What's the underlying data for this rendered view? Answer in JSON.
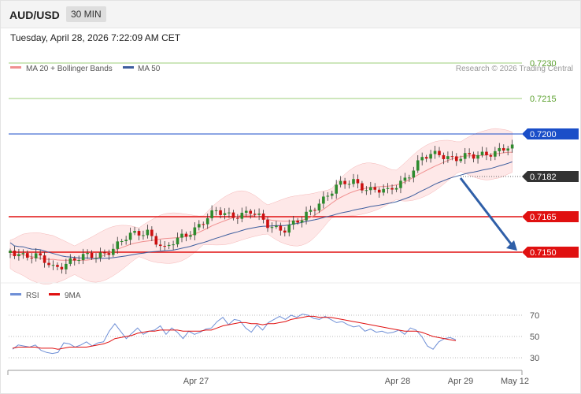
{
  "header": {
    "symbol": "AUD/USD",
    "timeframe": "30 MIN",
    "timestamp": "Tuesday, April 28, 2026 7:22:09 AM CET"
  },
  "legend": {
    "ma20": "MA 20 + Bollinger Bands",
    "ma50": "MA 50",
    "credit": "Research © 2026 Trading Central",
    "rsi": "RSI",
    "rsi_ma": "9MA"
  },
  "colors": {
    "bull": "#2e8b2e",
    "bear": "#cc1010",
    "ma20": "#f09090",
    "band": "#fde0e0",
    "ma50": "#3e5e9e",
    "resistance": "#1a4ec8",
    "support": "#e01010",
    "target_green": "#9dcf7a",
    "arrow": "#2f5fa8",
    "rsi": "#6e8fd6",
    "rsi_ma": "#e01010"
  },
  "chart_data": [
    {
      "type": "candlestick",
      "yrange": [
        0.7125,
        0.724
      ],
      "levels": [
        {
          "value": 0.723,
          "label": "0.7230",
          "kind": "target",
          "color": "#9dcf7a"
        },
        {
          "value": 0.7215,
          "label": "0.7215",
          "kind": "target",
          "color": "#9dcf7a"
        },
        {
          "value": 0.72,
          "label": "0.7200",
          "kind": "resistance",
          "color": "#1a4ec8"
        },
        {
          "value": 0.7182,
          "label": "0.7182",
          "kind": "last",
          "color": "#333333"
        },
        {
          "value": 0.7165,
          "label": "0.7165",
          "kind": "support",
          "color": "#e01010"
        },
        {
          "value": 0.715,
          "label": "0.7150",
          "kind": "support",
          "color": "#e01010"
        }
      ],
      "last_price": 0.7182,
      "forecast": {
        "from": 0.7182,
        "to": 0.715,
        "direction": "down"
      }
    },
    {
      "type": "line",
      "title": "RSI",
      "ylim": [
        25,
        75
      ],
      "yticks": [
        {
          "value": 70,
          "label": "70"
        },
        {
          "value": 50,
          "label": "50"
        },
        {
          "value": 30,
          "label": "30"
        }
      ],
      "series": [
        {
          "name": "RSI",
          "values": [
            38,
            42,
            41,
            40,
            42,
            37,
            35,
            34,
            35,
            44,
            43,
            40,
            42,
            45,
            41,
            44,
            45,
            55,
            62,
            55,
            48,
            53,
            58,
            52,
            55,
            56,
            60,
            52,
            58,
            54,
            48,
            55,
            52,
            54,
            57,
            58,
            64,
            68,
            61,
            66,
            65,
            58,
            54,
            61,
            56,
            63,
            66,
            69,
            66,
            70,
            68,
            71,
            70,
            67,
            66,
            69,
            66,
            63,
            64,
            61,
            59,
            60,
            55,
            57,
            54,
            55,
            53,
            54,
            56,
            52,
            58,
            56,
            50,
            41,
            38,
            45,
            48,
            49,
            47
          ]
        },
        {
          "name": "9MA",
          "values": [
            39,
            40,
            40,
            40,
            40,
            39,
            39,
            39,
            38,
            39,
            40,
            40,
            40,
            40,
            41,
            42,
            43,
            45,
            48,
            49,
            50,
            51,
            53,
            54,
            55,
            55,
            56,
            56,
            56,
            56,
            55,
            55,
            55,
            55,
            56,
            56,
            58,
            60,
            61,
            62,
            63,
            63,
            62,
            62,
            61,
            62,
            62,
            63,
            64,
            66,
            67,
            68,
            69,
            69,
            68,
            68,
            68,
            67,
            66,
            65,
            64,
            63,
            62,
            61,
            60,
            59,
            58,
            57,
            56,
            55,
            55,
            55,
            54,
            52,
            50,
            49,
            48,
            47,
            46
          ]
        }
      ]
    }
  ],
  "xaxis": {
    "ticks": [
      "Apr 27",
      "Apr 28",
      "Apr 29",
      "May 12"
    ]
  }
}
